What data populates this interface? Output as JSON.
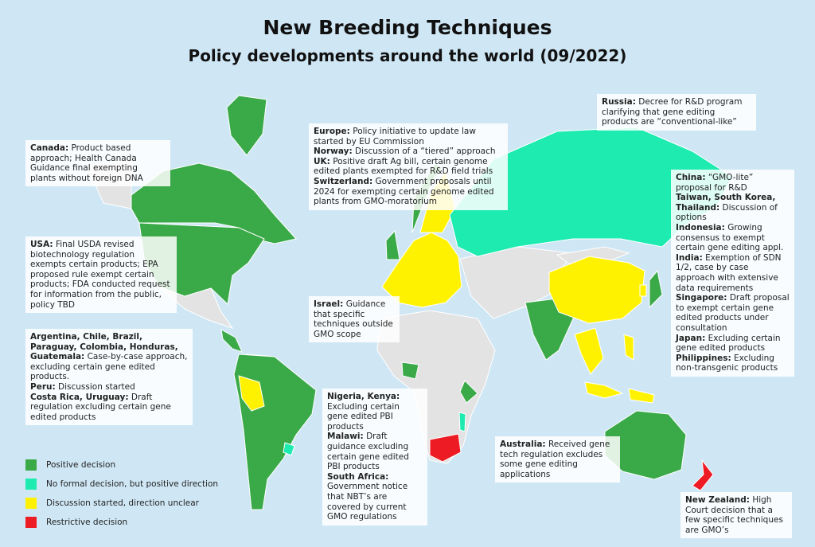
{
  "header": {
    "title": "New Breeding Techniques",
    "subtitle": "Policy developments around the world (09/2022)"
  },
  "legend": [
    {
      "label": "Positive decision",
      "color": "#3aa948"
    },
    {
      "label": "No formal decision, but positive direction",
      "color": "#1debb0"
    },
    {
      "label": "Discussion started, direction unclear",
      "color": "#fff200"
    },
    {
      "label": "Restrictive decision",
      "color": "#ed1c24"
    }
  ],
  "notes": [
    {
      "items": [
        {
          "label": "Canada:",
          "text": "Product based approach; Health Canada Guidance final exempting plants without foreign DNA"
        }
      ]
    },
    {
      "items": [
        {
          "label": "USA:",
          "text": "Final USDA revised biotechnology regulation exempts certain products; EPA proposed rule exempt certain products; FDA conducted request for information from the public, policy TBD"
        }
      ]
    },
    {
      "items": [
        {
          "label": "Argentina, Chile, Brazil, Paraguay, Colombia, Honduras, Guatemala:",
          "text": "Case-by-case approach, excluding certain gene edited products."
        },
        {
          "label": "Peru:",
          "text": "Discussion started"
        },
        {
          "label": "Costa Rica, Uruguay:",
          "text": "Draft regulation excluding certain gene edited products"
        }
      ]
    },
    {
      "items": [
        {
          "label": "Europe:",
          "text": "Policy initiative to update law started by EU Commission"
        },
        {
          "label": "Norway:",
          "text": "Discussion of a “tiered” approach"
        },
        {
          "label": "UK:",
          "text": "Positive draft Ag bill, certain genome edited plants exempted for R&D field trials"
        },
        {
          "label": "Switzerland:",
          "text": "Government proposals until 2024 for exempting certain genome edited plants from GMO-moratorium"
        }
      ]
    },
    {
      "items": [
        {
          "label": "Russia:",
          "text": "Decree for R&D program clarifying that gene editing products are “conventional-like”"
        }
      ]
    },
    {
      "items": [
        {
          "label": "China:",
          "text": "“GMO-lite” proposal for R&D"
        },
        {
          "label": "Taiwan, South Korea, Thailand:",
          "text": "Discussion of options"
        },
        {
          "label": "Indonesia:",
          "text": "Growing consensus to exempt certain gene editing appl."
        },
        {
          "label": "India:",
          "text": "Exemption of SDN 1/2, case by case approach with extensive data requirements"
        },
        {
          "label": "Singapore:",
          "text": "Draft proposal to exempt certain gene edited products under consultation"
        },
        {
          "label": "Japan:",
          "text": "Excluding certain gene edited products"
        },
        {
          "label": "Philippines:",
          "text": "Excluding non-transgenic products"
        }
      ]
    },
    {
      "items": [
        {
          "label": "Israel:",
          "text": "Guidance that specific techniques outside GMO scope"
        }
      ]
    },
    {
      "items": [
        {
          "label": "Nigeria, Kenya:",
          "text": "Excluding certain gene edited PBI products"
        },
        {
          "label": "Malawi:",
          "text": "Draft guidance excluding certain gene edited PBI products"
        },
        {
          "label": "South Africa:",
          "text": "Government notice that NBT’s are covered by current GMO regulations"
        }
      ]
    },
    {
      "items": [
        {
          "label": "Australia:",
          "text": "Received gene tech regulation excludes some gene editing applications"
        }
      ]
    },
    {
      "items": [
        {
          "label": "New Zealand:",
          "text": "High Court decision that a few specific techniques are GMO’s"
        }
      ]
    }
  ]
}
